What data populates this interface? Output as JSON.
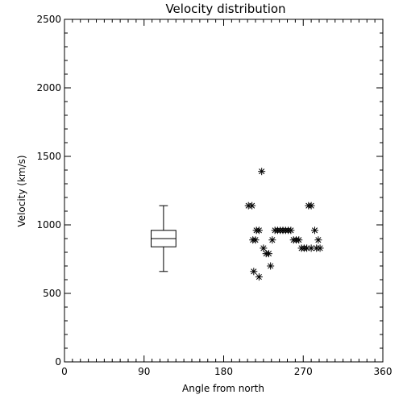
{
  "chart_data": {
    "type": "scatter",
    "title": "Velocity distribution",
    "xlabel": "Angle from north",
    "ylabel": "Velocity (km/s)",
    "xlim": [
      0,
      360
    ],
    "ylim": [
      0,
      2500
    ],
    "xticks": [
      "0",
      "90",
      "180",
      "270",
      "360"
    ],
    "xtick_values": [
      0,
      90,
      180,
      270,
      360
    ],
    "yticks": [
      "0",
      "500",
      "1000",
      "1500",
      "2000",
      "2500"
    ],
    "ytick_values": [
      0,
      500,
      1000,
      1500,
      2000,
      2500
    ],
    "grid": false,
    "marker": "asterisk",
    "points": [
      {
        "x": 208,
        "y": 1140
      },
      {
        "x": 212,
        "y": 1140
      },
      {
        "x": 223,
        "y": 1390
      },
      {
        "x": 276,
        "y": 1140
      },
      {
        "x": 279,
        "y": 1140
      },
      {
        "x": 213,
        "y": 890
      },
      {
        "x": 216,
        "y": 890
      },
      {
        "x": 217,
        "y": 960
      },
      {
        "x": 220,
        "y": 960
      },
      {
        "x": 225,
        "y": 830
      },
      {
        "x": 228,
        "y": 790
      },
      {
        "x": 231,
        "y": 790
      },
      {
        "x": 235,
        "y": 890
      },
      {
        "x": 238,
        "y": 960
      },
      {
        "x": 241,
        "y": 960
      },
      {
        "x": 244,
        "y": 960
      },
      {
        "x": 247,
        "y": 960
      },
      {
        "x": 250,
        "y": 960
      },
      {
        "x": 253,
        "y": 960
      },
      {
        "x": 256,
        "y": 960
      },
      {
        "x": 259,
        "y": 890
      },
      {
        "x": 262,
        "y": 890
      },
      {
        "x": 265,
        "y": 890
      },
      {
        "x": 268,
        "y": 830
      },
      {
        "x": 271,
        "y": 830
      },
      {
        "x": 274,
        "y": 830
      },
      {
        "x": 279,
        "y": 830
      },
      {
        "x": 283,
        "y": 960
      },
      {
        "x": 285,
        "y": 830
      },
      {
        "x": 287,
        "y": 890
      },
      {
        "x": 289,
        "y": 830
      },
      {
        "x": 214,
        "y": 660
      },
      {
        "x": 220,
        "y": 620
      },
      {
        "x": 233,
        "y": 700
      }
    ],
    "boxplot": {
      "x": 112,
      "half_width": 14,
      "min": 660,
      "q1": 840,
      "median": 900,
      "q3": 960,
      "max": 1140
    }
  }
}
